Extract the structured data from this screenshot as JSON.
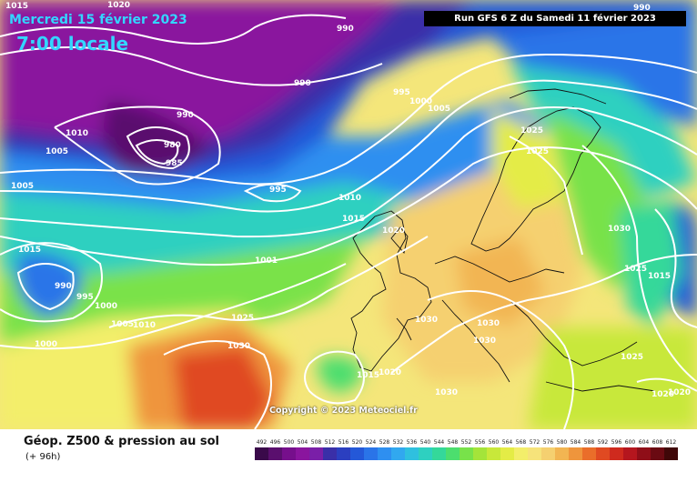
{
  "header": {
    "date": "Mercredi 15 février 2023",
    "time": "7:00 locale",
    "run": "Run GFS 6 Z du Samedi 11 février 2023"
  },
  "copyright": "Copyright © 2023 Meteociel.fr",
  "legend": {
    "title": "Géop. Z500 & pression au sol",
    "subtitle": "(+ 96h)",
    "ticks": [
      "492",
      "496",
      "500",
      "504",
      "508",
      "512",
      "516",
      "520",
      "524",
      "528",
      "532",
      "536",
      "540",
      "544",
      "548",
      "552",
      "556",
      "560",
      "564",
      "568",
      "572",
      "576",
      "580",
      "584",
      "588",
      "592",
      "596",
      "600",
      "604",
      "608",
      "612"
    ],
    "colors": [
      "#3a0a4a",
      "#5a0f6e",
      "#760f8c",
      "#8a159e",
      "#7a1fa8",
      "#3a2fa8",
      "#2b3fc0",
      "#2458d8",
      "#2a74e8",
      "#2e8ff0",
      "#31a8ef",
      "#2fc0df",
      "#2ed0c0",
      "#34d89a",
      "#4cde6e",
      "#78e24a",
      "#a4e43a",
      "#c8e83a",
      "#e4ec46",
      "#f3ee6a",
      "#f6e37a",
      "#f5d070",
      "#f2b552",
      "#ef953c",
      "#ea6e2a",
      "#e04a22",
      "#cf2a1e",
      "#b5161e",
      "#8f0e18",
      "#6a0a12",
      "#400708"
    ]
  },
  "map": {
    "isobar_labels": [
      {
        "text": "1015",
        "pos": "top-left corner"
      },
      {
        "text": "1020"
      },
      {
        "text": "990"
      },
      {
        "text": "990"
      },
      {
        "text": "990"
      },
      {
        "text": "990"
      },
      {
        "text": "995"
      },
      {
        "text": "1000"
      },
      {
        "text": "1005"
      },
      {
        "text": "1010"
      },
      {
        "text": "1005"
      },
      {
        "text": "980"
      },
      {
        "text": "985"
      },
      {
        "text": "1005"
      },
      {
        "text": "995"
      },
      {
        "text": "1010"
      },
      {
        "text": "1015"
      },
      {
        "text": "1020"
      },
      {
        "text": "1025"
      },
      {
        "text": "1025"
      },
      {
        "text": "1030"
      },
      {
        "text": "1015"
      },
      {
        "text": "990"
      },
      {
        "text": "995"
      },
      {
        "text": "1000"
      },
      {
        "text": "1005"
      },
      {
        "text": "1010"
      },
      {
        "text": "1000"
      },
      {
        "text": "1001"
      },
      {
        "text": "1025"
      },
      {
        "text": "1030"
      },
      {
        "text": "1030"
      },
      {
        "text": "1030"
      },
      {
        "text": "1030"
      },
      {
        "text": "1025"
      },
      {
        "text": "1015"
      },
      {
        "text": "1015"
      },
      {
        "text": "1020"
      },
      {
        "text": "1030"
      },
      {
        "text": "1025"
      },
      {
        "text": "1020"
      },
      {
        "text": "1020"
      }
    ]
  }
}
